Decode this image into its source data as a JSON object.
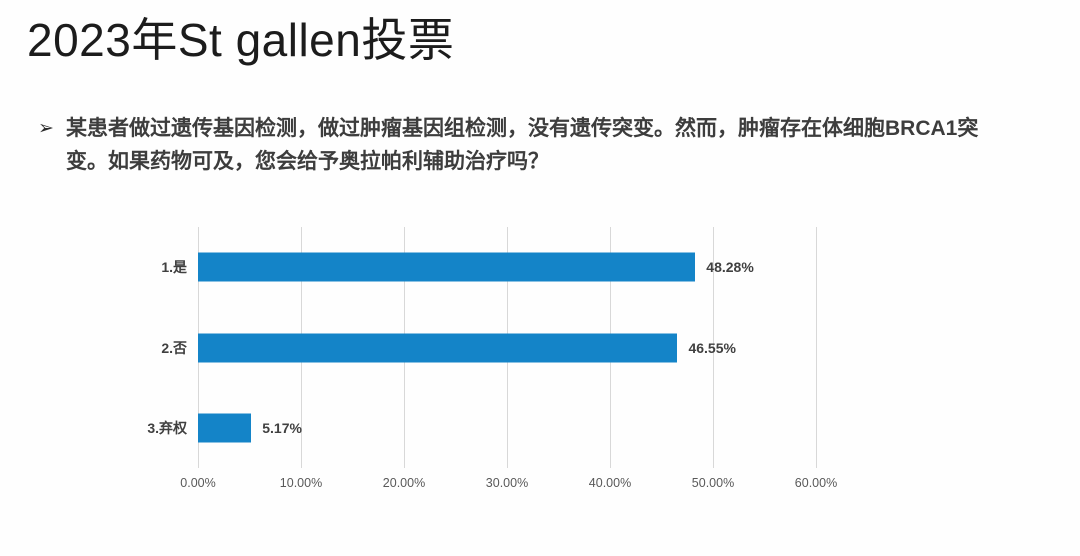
{
  "page": {
    "title": "2023年St gallen投票"
  },
  "question": {
    "bullet": "➢",
    "text": "某患者做过遗传基因检测，做过肿瘤基因组检测，没有遗传突变。然而，肿瘤存在体细胞BRCA1突变。如果药物可及，您会给予奥拉帕利辅助治疗吗？",
    "line1": "某患者做过遗传基因检测，做过肿瘤基因组检测，没有遗传突变。然而，肿瘤存在体细胞BRCA1突",
    "line2": "变。如果药物可及，您会给予奥拉帕利辅助治疗吗？"
  },
  "chart_data": {
    "type": "bar",
    "orientation": "horizontal",
    "title": "",
    "xlabel": "",
    "ylabel": "",
    "categories": [
      "1.是",
      "2.否",
      "3.弃权"
    ],
    "values": [
      48.28,
      46.55,
      5.17
    ],
    "value_labels": [
      "48.28%",
      "46.55%",
      "5.17%"
    ],
    "x_ticks": [
      "0.00%",
      "10.00%",
      "20.00%",
      "30.00%",
      "40.00%",
      "50.00%",
      "60.00%"
    ],
    "x_tick_values": [
      0,
      10,
      20,
      30,
      40,
      50,
      60
    ],
    "xlim": [
      0,
      60
    ],
    "grid": true,
    "legend": false,
    "bar_color": "#1484C8",
    "gridline_color": "#d8d8d8",
    "label_color": "#404040",
    "tick_color": "#595959"
  }
}
